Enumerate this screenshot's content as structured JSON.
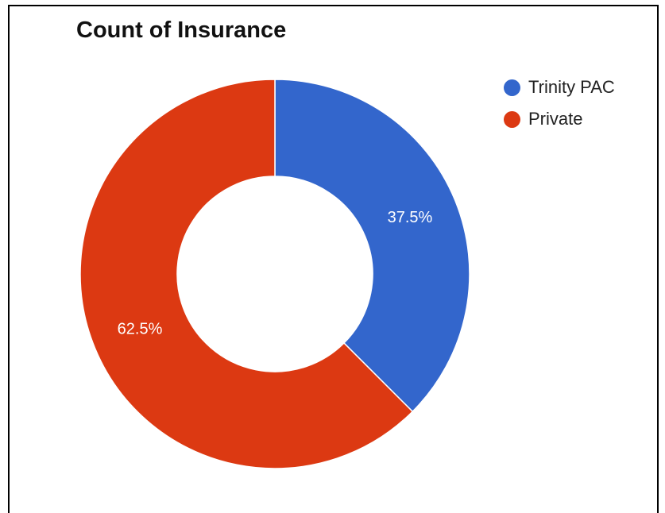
{
  "chart_data": {
    "type": "pie",
    "title": "Count of Insurance",
    "donut": true,
    "legend_position": "right",
    "categories": [
      "Trinity PAC",
      "Private"
    ],
    "values": [
      37.5,
      62.5
    ],
    "labels": [
      "37.5%",
      "62.5%"
    ],
    "colors": [
      "#3366cc",
      "#dc3912"
    ]
  }
}
